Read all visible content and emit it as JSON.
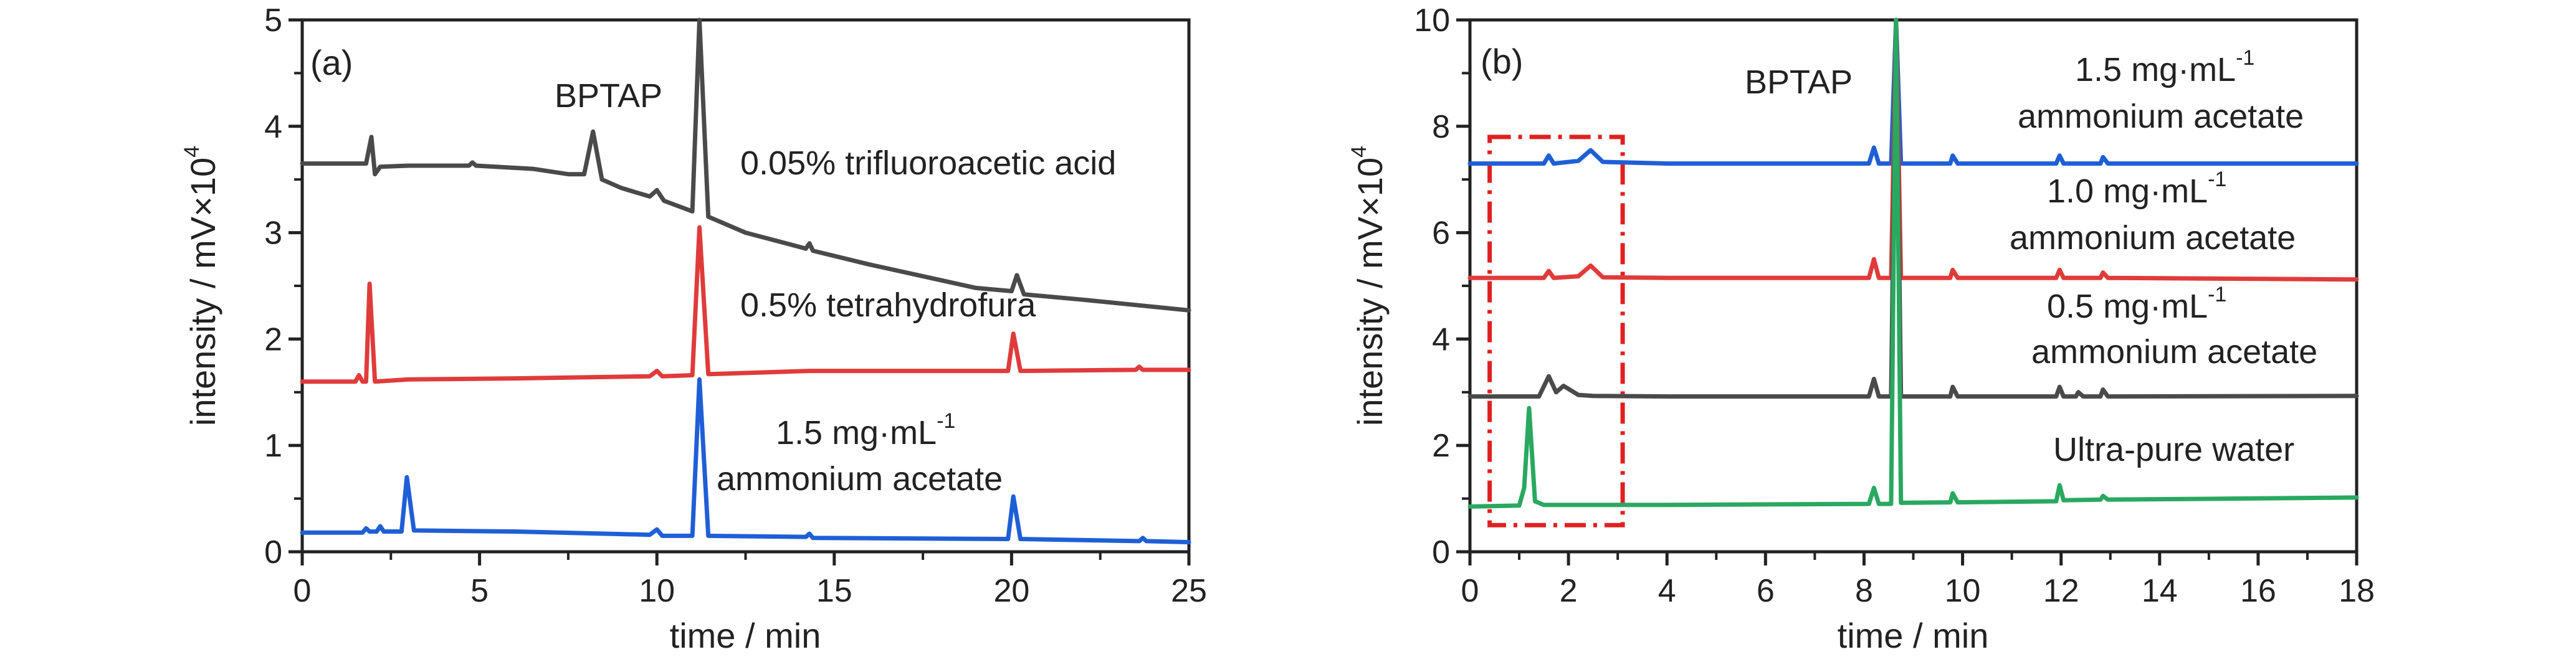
{
  "chart_data": [
    {
      "panel": "(a)",
      "type": "line",
      "xlabel": "time / min",
      "ylabel_main": "intensity / mV×10",
      "ylabel_sup": "4",
      "xlim": [
        0,
        25
      ],
      "ylim": [
        0,
        5
      ],
      "xticks": [
        "0",
        "5",
        "10",
        "15",
        "20",
        "25"
      ],
      "yticks": [
        "0",
        "1",
        "2",
        "3",
        "4",
        "5"
      ],
      "grid": false,
      "peak_label": "BPTAP",
      "series": [
        {
          "color": "#4a4a4a",
          "annotation": [
            "0.05% trifluoroacetic acid"
          ],
          "points": [
            [
              0,
              3.65
            ],
            [
              1.8,
              3.65
            ],
            [
              1.95,
              3.9
            ],
            [
              2.05,
              3.55
            ],
            [
              2.2,
              3.62
            ],
            [
              3.0,
              3.63
            ],
            [
              4.7,
              3.63
            ],
            [
              4.8,
              3.66
            ],
            [
              4.9,
              3.63
            ],
            [
              6.5,
              3.6
            ],
            [
              7.5,
              3.55
            ],
            [
              7.95,
              3.55
            ],
            [
              8.2,
              3.95
            ],
            [
              8.45,
              3.5
            ],
            [
              9.0,
              3.42
            ],
            [
              9.8,
              3.34
            ],
            [
              10.0,
              3.4
            ],
            [
              10.2,
              3.3
            ],
            [
              11.0,
              3.2
            ],
            [
              11.2,
              5.0
            ],
            [
              11.45,
              3.15
            ],
            [
              12.5,
              3.0
            ],
            [
              14.2,
              2.85
            ],
            [
              14.3,
              2.9
            ],
            [
              14.4,
              2.83
            ],
            [
              16.0,
              2.7
            ],
            [
              19.0,
              2.48
            ],
            [
              20.0,
              2.45
            ],
            [
              20.15,
              2.6
            ],
            [
              20.35,
              2.42
            ],
            [
              22.0,
              2.37
            ],
            [
              25.0,
              2.27
            ]
          ]
        },
        {
          "color": "#e03b3b",
          "annotation": [
            "0.5% tetrahydrofura"
          ],
          "points": [
            [
              0,
              1.6
            ],
            [
              1.5,
              1.6
            ],
            [
              1.6,
              1.66
            ],
            [
              1.7,
              1.6
            ],
            [
              1.8,
              1.6
            ],
            [
              1.9,
              2.52
            ],
            [
              2.05,
              1.6
            ],
            [
              3.0,
              1.62
            ],
            [
              6.0,
              1.63
            ],
            [
              9.8,
              1.65
            ],
            [
              10.0,
              1.7
            ],
            [
              10.15,
              1.65
            ],
            [
              11.0,
              1.66
            ],
            [
              11.2,
              3.05
            ],
            [
              11.45,
              1.67
            ],
            [
              14.3,
              1.7
            ],
            [
              19.9,
              1.7
            ],
            [
              20.05,
              2.05
            ],
            [
              20.25,
              1.7
            ],
            [
              23.5,
              1.71
            ],
            [
              23.6,
              1.74
            ],
            [
              23.7,
              1.71
            ],
            [
              25.0,
              1.71
            ]
          ]
        },
        {
          "color": "#1f5fd6",
          "annotation": [
            "1.5 mg·mL",
            "ammonium acetate"
          ],
          "annotation_sup": "-1",
          "points": [
            [
              0,
              0.18
            ],
            [
              1.7,
              0.18
            ],
            [
              1.8,
              0.22
            ],
            [
              1.9,
              0.19
            ],
            [
              2.1,
              0.19
            ],
            [
              2.2,
              0.24
            ],
            [
              2.3,
              0.19
            ],
            [
              2.8,
              0.19
            ],
            [
              2.95,
              0.7
            ],
            [
              3.15,
              0.2
            ],
            [
              6.0,
              0.19
            ],
            [
              9.8,
              0.16
            ],
            [
              10.0,
              0.21
            ],
            [
              10.15,
              0.15
            ],
            [
              11.0,
              0.15
            ],
            [
              11.2,
              1.62
            ],
            [
              11.45,
              0.15
            ],
            [
              14.2,
              0.14
            ],
            [
              14.3,
              0.17
            ],
            [
              14.4,
              0.13
            ],
            [
              19.9,
              0.12
            ],
            [
              20.05,
              0.52
            ],
            [
              20.25,
              0.12
            ],
            [
              23.6,
              0.1
            ],
            [
              23.7,
              0.13
            ],
            [
              23.8,
              0.1
            ],
            [
              25.0,
              0.09
            ]
          ]
        }
      ]
    },
    {
      "panel": "(b)",
      "type": "line",
      "xlabel": "time / min",
      "ylabel_main": "intensity / mV×10",
      "ylabel_sup": "4",
      "xlim": [
        0,
        18
      ],
      "ylim": [
        0,
        10
      ],
      "xticks": [
        "0",
        "2",
        "4",
        "6",
        "8",
        "10",
        "12",
        "14",
        "16",
        "18"
      ],
      "yticks": [
        "0",
        "2",
        "4",
        "6",
        "8",
        "10"
      ],
      "grid": false,
      "peak_label": "BPTAP",
      "highlight_box": {
        "x0": 0.4,
        "x1": 3.1,
        "y0": 0.5,
        "y1": 7.8,
        "color": "#e02020"
      },
      "series": [
        {
          "color": "#1f5fd6",
          "annotation": [
            "1.5 mg·mL",
            "ammonium acetate"
          ],
          "annotation_sup": "-1",
          "points": [
            [
              0,
              7.3
            ],
            [
              1.5,
              7.3
            ],
            [
              1.6,
              7.45
            ],
            [
              1.7,
              7.3
            ],
            [
              2.2,
              7.35
            ],
            [
              2.45,
              7.55
            ],
            [
              2.7,
              7.33
            ],
            [
              4.0,
              7.3
            ],
            [
              8.1,
              7.3
            ],
            [
              8.2,
              7.6
            ],
            [
              8.3,
              7.3
            ],
            [
              8.55,
              7.3
            ],
            [
              8.65,
              10.0
            ],
            [
              8.75,
              7.3
            ],
            [
              9.75,
              7.3
            ],
            [
              9.8,
              7.45
            ],
            [
              9.9,
              7.3
            ],
            [
              11.9,
              7.3
            ],
            [
              11.97,
              7.45
            ],
            [
              12.05,
              7.3
            ],
            [
              12.8,
              7.3
            ],
            [
              12.85,
              7.42
            ],
            [
              12.95,
              7.3
            ],
            [
              18.0,
              7.3
            ]
          ]
        },
        {
          "color": "#e03b3b",
          "annotation": [
            "1.0 mg·mL",
            "ammonium acetate"
          ],
          "annotation_sup": "-1",
          "points": [
            [
              0,
              5.15
            ],
            [
              1.5,
              5.15
            ],
            [
              1.6,
              5.28
            ],
            [
              1.7,
              5.15
            ],
            [
              2.2,
              5.18
            ],
            [
              2.45,
              5.38
            ],
            [
              2.7,
              5.16
            ],
            [
              4.0,
              5.15
            ],
            [
              8.1,
              5.15
            ],
            [
              8.2,
              5.5
            ],
            [
              8.3,
              5.15
            ],
            [
              8.55,
              5.15
            ],
            [
              8.65,
              10.0
            ],
            [
              8.75,
              5.15
            ],
            [
              9.75,
              5.15
            ],
            [
              9.8,
              5.3
            ],
            [
              9.9,
              5.15
            ],
            [
              11.9,
              5.15
            ],
            [
              11.97,
              5.3
            ],
            [
              12.05,
              5.15
            ],
            [
              12.8,
              5.15
            ],
            [
              12.85,
              5.25
            ],
            [
              12.95,
              5.15
            ],
            [
              18.0,
              5.12
            ]
          ]
        },
        {
          "color": "#4a4a4a",
          "annotation": [
            "0.5 mg·mL",
            "ammonium acetate"
          ],
          "annotation_sup": "-1",
          "points": [
            [
              0,
              2.92
            ],
            [
              1.4,
              2.92
            ],
            [
              1.6,
              3.3
            ],
            [
              1.75,
              3.0
            ],
            [
              1.9,
              3.12
            ],
            [
              2.2,
              2.95
            ],
            [
              2.5,
              2.93
            ],
            [
              4.0,
              2.92
            ],
            [
              8.1,
              2.92
            ],
            [
              8.2,
              3.25
            ],
            [
              8.3,
              2.92
            ],
            [
              8.55,
              2.92
            ],
            [
              8.65,
              10.0
            ],
            [
              8.75,
              2.92
            ],
            [
              9.75,
              2.92
            ],
            [
              9.8,
              3.1
            ],
            [
              9.9,
              2.92
            ],
            [
              11.9,
              2.92
            ],
            [
              11.97,
              3.1
            ],
            [
              12.05,
              2.92
            ],
            [
              12.3,
              2.92
            ],
            [
              12.35,
              3.0
            ],
            [
              12.45,
              2.92
            ],
            [
              12.8,
              2.92
            ],
            [
              12.85,
              3.05
            ],
            [
              12.95,
              2.92
            ],
            [
              18.0,
              2.93
            ]
          ]
        },
        {
          "color": "#2aa860",
          "annotation": [
            "Ultra-pure water"
          ],
          "points": [
            [
              0,
              0.85
            ],
            [
              1.0,
              0.87
            ],
            [
              1.1,
              1.2
            ],
            [
              1.2,
              2.7
            ],
            [
              1.32,
              0.95
            ],
            [
              1.5,
              0.88
            ],
            [
              4.0,
              0.88
            ],
            [
              8.1,
              0.9
            ],
            [
              8.2,
              1.2
            ],
            [
              8.3,
              0.9
            ],
            [
              8.55,
              0.9
            ],
            [
              8.65,
              10.0
            ],
            [
              8.75,
              0.92
            ],
            [
              9.75,
              0.93
            ],
            [
              9.8,
              1.1
            ],
            [
              9.9,
              0.93
            ],
            [
              11.9,
              0.95
            ],
            [
              11.97,
              1.25
            ],
            [
              12.05,
              0.97
            ],
            [
              12.8,
              0.98
            ],
            [
              12.85,
              1.05
            ],
            [
              12.95,
              0.98
            ],
            [
              18.0,
              1.02
            ]
          ]
        }
      ]
    }
  ]
}
